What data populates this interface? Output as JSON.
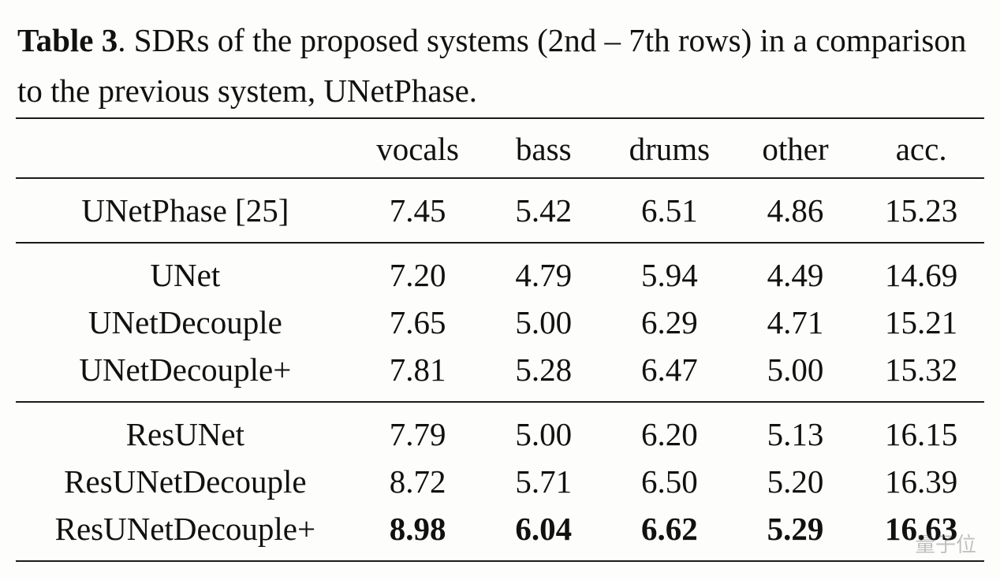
{
  "caption": {
    "label": "Table 3",
    "text": ".  SDRs of the proposed systems (2nd – 7th rows) in a comparison to the previous system, UNetPhase."
  },
  "table": {
    "columns": [
      "",
      "vocals",
      "bass",
      "drums",
      "other",
      "acc."
    ],
    "col_align": [
      "center",
      "center",
      "center",
      "center",
      "center",
      "center"
    ],
    "header_fontsize": 41,
    "body_fontsize": 41,
    "rule_color": "#1a1a1a",
    "background_color": "#fdfdfb",
    "groups": [
      {
        "rows": [
          {
            "name": "UNetPhase [25]",
            "vals": [
              "7.45",
              "5.42",
              "6.51",
              "4.86",
              "15.23"
            ],
            "bold": false
          }
        ]
      },
      {
        "rows": [
          {
            "name": "UNet",
            "vals": [
              "7.20",
              "4.79",
              "5.94",
              "4.49",
              "14.69"
            ],
            "bold": false
          },
          {
            "name": "UNetDecouple",
            "vals": [
              "7.65",
              "5.00",
              "6.29",
              "4.71",
              "15.21"
            ],
            "bold": false
          },
          {
            "name": "UNetDecouple+",
            "vals": [
              "7.81",
              "5.28",
              "6.47",
              "5.00",
              "15.32"
            ],
            "bold": false
          }
        ]
      },
      {
        "rows": [
          {
            "name": "ResUNet",
            "vals": [
              "7.79",
              "5.00",
              "6.20",
              "5.13",
              "16.15"
            ],
            "bold": false
          },
          {
            "name": "ResUNetDecouple",
            "vals": [
              "8.72",
              "5.71",
              "6.50",
              "5.20",
              "16.39"
            ],
            "bold": false
          },
          {
            "name": "ResUNetDecouple+",
            "vals": [
              "8.98",
              "6.04",
              "6.62",
              "5.29",
              "16.63"
            ],
            "bold": true
          }
        ]
      }
    ]
  },
  "watermark": "量子位"
}
